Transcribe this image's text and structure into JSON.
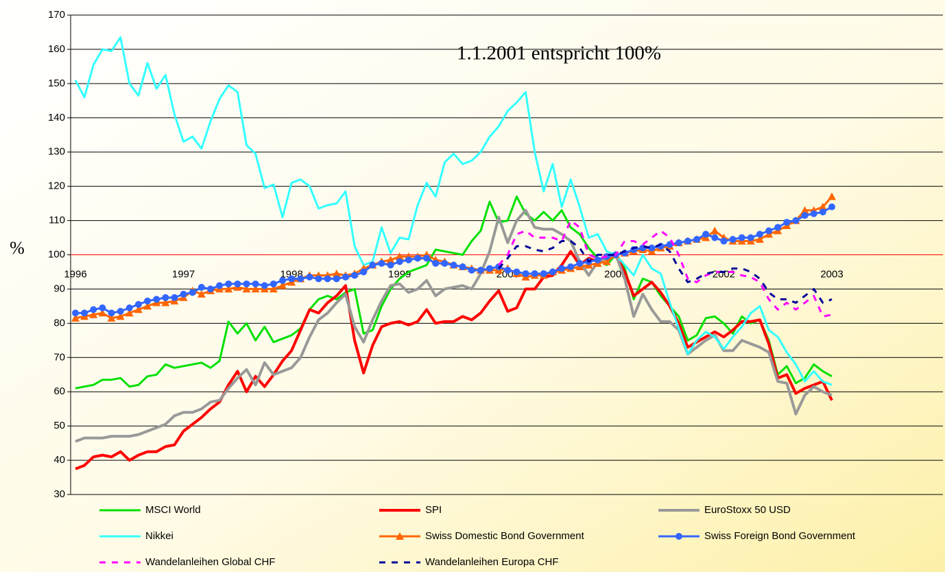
{
  "chart_data": {
    "type": "line",
    "annotation": "1.1.2001 entspricht 100%",
    "ylabel": "%",
    "ylim": [
      30,
      170
    ],
    "yticks": [
      30,
      40,
      50,
      60,
      70,
      80,
      90,
      100,
      110,
      120,
      130,
      140,
      150,
      160,
      170
    ],
    "reference_line": 100,
    "reference_color": "#ff0000",
    "grid": true,
    "legend": "bottom",
    "categories": [
      "1996",
      null,
      null,
      null,
      null,
      null,
      null,
      null,
      null,
      null,
      null,
      null,
      "1997",
      null,
      null,
      null,
      null,
      null,
      null,
      null,
      null,
      null,
      null,
      null,
      "1998",
      null,
      null,
      null,
      null,
      null,
      null,
      null,
      null,
      null,
      null,
      null,
      "1999",
      null,
      null,
      null,
      null,
      null,
      null,
      null,
      null,
      null,
      null,
      null,
      "2000",
      null,
      null,
      null,
      null,
      null,
      null,
      null,
      null,
      null,
      null,
      null,
      "2001",
      null,
      null,
      null,
      null,
      null,
      null,
      null,
      null,
      null,
      null,
      null,
      "2002",
      null,
      null,
      null,
      null,
      null,
      null,
      null,
      null,
      null,
      null,
      null,
      "2003"
    ],
    "series": [
      {
        "name": "MSCI World",
        "color": "#00e000",
        "width": 3,
        "values": [
          61,
          61.5,
          62,
          63.5,
          63.5,
          64,
          61.5,
          62,
          64.5,
          65,
          68,
          67,
          67.5,
          68,
          68.5,
          67,
          69,
          80.5,
          77,
          80,
          75,
          79,
          74.5,
          75.5,
          76.5,
          78.5,
          84,
          87,
          88,
          87,
          89,
          90,
          77,
          78,
          85,
          90,
          93,
          95,
          96,
          97,
          101.5,
          101,
          100.5,
          100,
          104,
          107,
          115.5,
          109.5,
          110,
          117,
          112,
          110,
          112.5,
          110,
          113,
          108,
          106,
          102,
          99,
          97,
          100,
          96,
          87,
          93,
          92,
          88,
          85,
          82,
          75,
          76.5,
          81.5,
          82,
          80,
          77,
          82,
          80,
          81,
          75,
          65,
          67.5,
          62.5,
          64,
          68,
          66,
          64.5
        ]
      },
      {
        "name": "SPI",
        "color": "#ff0000",
        "width": 4,
        "values": [
          37.5,
          38.5,
          41,
          41.5,
          41,
          42.5,
          40,
          41.5,
          42.5,
          42.5,
          44,
          44.5,
          48.5,
          50.5,
          52.5,
          55,
          57,
          62,
          66,
          60,
          64.5,
          61.5,
          65,
          69,
          72,
          78,
          84,
          83,
          86,
          88,
          91,
          75,
          65.5,
          73.5,
          79,
          80,
          80.5,
          79.5,
          80.5,
          84,
          80,
          80.5,
          80.5,
          82,
          81,
          83,
          86.5,
          89.5,
          83.5,
          84.5,
          90,
          90,
          93.5,
          94,
          97,
          101,
          97,
          99,
          98,
          99,
          100,
          95,
          88,
          90,
          92,
          89,
          85,
          80,
          73,
          74.5,
          76,
          77.5,
          76,
          78,
          80.5,
          80.5,
          81,
          74,
          64,
          65,
          59.5,
          61,
          62,
          63,
          57.5
        ]
      },
      {
        "name": "EuroStoxx 50 USD",
        "color": "#999999",
        "width": 4,
        "values": [
          45.5,
          46.5,
          46.5,
          46.5,
          47,
          47,
          47,
          47.5,
          48.5,
          49.5,
          50.5,
          53,
          54,
          54,
          55,
          57,
          57.5,
          61,
          64,
          66.5,
          62,
          68.5,
          65,
          66,
          67,
          70,
          76,
          81,
          83,
          86,
          88.5,
          79,
          74.5,
          81,
          86.5,
          91,
          91.5,
          89,
          90,
          92.5,
          88,
          90,
          90.5,
          91,
          90,
          94.5,
          101,
          111,
          103.5,
          110,
          113,
          108,
          107.5,
          107.5,
          106,
          104,
          98,
          94,
          98,
          99,
          100,
          93,
          82,
          88.5,
          84,
          80.5,
          80.5,
          78,
          71,
          73,
          75,
          76.5,
          72,
          72,
          75,
          74,
          73,
          71.5,
          63,
          62.5,
          53.5,
          59,
          61.5,
          60,
          59
        ]
      },
      {
        "name": "Nikkei",
        "color": "#33ffff",
        "width": 3,
        "values": [
          151,
          146,
          155.5,
          160,
          159.5,
          163.5,
          150,
          146.5,
          156,
          148.5,
          152.5,
          141,
          133,
          134.5,
          131,
          139,
          145.5,
          149.5,
          147.5,
          132,
          129.5,
          119.5,
          120.5,
          111,
          121,
          122,
          120,
          113.5,
          114.5,
          115,
          118.5,
          102.5,
          97,
          98,
          108,
          100.5,
          105,
          104.5,
          114.5,
          121,
          117,
          127,
          129.5,
          126.5,
          127.5,
          130,
          134.5,
          137.5,
          142,
          144.5,
          147.5,
          130,
          118.5,
          126.5,
          114,
          122,
          114,
          105,
          106,
          101,
          100,
          97,
          94,
          100,
          96,
          94.5,
          86,
          78.5,
          71,
          75,
          77.5,
          76,
          72.5,
          76,
          79,
          83,
          85,
          78,
          76,
          71.5,
          68,
          63,
          66,
          63,
          62
        ]
      },
      {
        "name": "Swiss Domestic Bond Government",
        "color": "#ff6600",
        "width": 3,
        "marker": "triangle",
        "values": [
          81.5,
          82,
          82.5,
          83,
          81.5,
          82,
          83,
          84,
          85,
          86,
          86,
          86.5,
          87.5,
          89.5,
          88.5,
          89.5,
          90,
          90,
          90.5,
          90,
          90,
          90,
          90,
          91,
          92,
          93,
          94,
          94,
          94,
          94.5,
          94,
          94.5,
          96,
          97,
          98,
          98.5,
          99.5,
          99.5,
          99.5,
          100,
          98.5,
          98,
          97,
          96.5,
          96,
          95.5,
          95.5,
          95.5,
          96,
          94.5,
          93.5,
          94,
          94,
          95,
          95.5,
          96,
          96.5,
          97,
          97.5,
          98,
          100,
          100.5,
          101,
          101.5,
          101,
          102,
          102.5,
          103.5,
          104,
          104.5,
          105,
          107,
          105,
          104,
          104,
          104,
          104.5,
          106,
          107,
          108.5,
          110,
          113,
          113,
          114,
          117
        ]
      },
      {
        "name": "Swiss Foreign Bond Government",
        "color": "#3366ff",
        "width": 3,
        "marker": "circle",
        "values": [
          83,
          83,
          84,
          84.5,
          83,
          83.5,
          84.5,
          85.5,
          86.5,
          87,
          87.5,
          87.5,
          88.5,
          89,
          90.5,
          90,
          91,
          91.5,
          91.5,
          91.5,
          91.5,
          91,
          91.5,
          92.5,
          93,
          93,
          93.5,
          93,
          93,
          93,
          93.5,
          94,
          95,
          97,
          97.5,
          97,
          98,
          98.5,
          99,
          99,
          97.5,
          97.5,
          97,
          96.5,
          95.5,
          95.5,
          96,
          96.5,
          95.5,
          95,
          94.5,
          94.5,
          94.5,
          95,
          96,
          96.5,
          97.5,
          98,
          98.5,
          99.5,
          100,
          100.5,
          101.5,
          102,
          102,
          102.5,
          103,
          103.5,
          104,
          104.5,
          106,
          105,
          104,
          104.5,
          105,
          105,
          106,
          107,
          108,
          109.5,
          110,
          111.5,
          112,
          112.5,
          114
        ]
      },
      {
        "name": "Wandelanleihen Global CHF",
        "color": "#ff00ff",
        "width": 3,
        "dash": true,
        "values": [
          null,
          null,
          null,
          null,
          null,
          null,
          null,
          null,
          null,
          null,
          null,
          null,
          null,
          null,
          null,
          null,
          null,
          null,
          null,
          null,
          null,
          null,
          null,
          null,
          null,
          null,
          null,
          null,
          null,
          null,
          null,
          null,
          null,
          null,
          null,
          null,
          null,
          null,
          null,
          null,
          null,
          null,
          null,
          null,
          null,
          null,
          null,
          97,
          100,
          106,
          107,
          105,
          105,
          105,
          104,
          110,
          108,
          100,
          99,
          99.5,
          100,
          104,
          104,
          103,
          105,
          107,
          105,
          100,
          93,
          92,
          94,
          95,
          95,
          95,
          94,
          93.5,
          92,
          87,
          84,
          86,
          84,
          86,
          88,
          82,
          82.5
        ]
      },
      {
        "name": "Wandelanleihen Europa CHF",
        "color": "#000099",
        "width": 3,
        "dash": true,
        "values": [
          null,
          null,
          null,
          null,
          null,
          null,
          null,
          null,
          null,
          null,
          null,
          null,
          null,
          null,
          null,
          null,
          null,
          null,
          null,
          null,
          null,
          null,
          null,
          null,
          null,
          null,
          null,
          null,
          null,
          null,
          null,
          null,
          null,
          null,
          null,
          null,
          null,
          null,
          null,
          null,
          null,
          null,
          null,
          null,
          null,
          null,
          null,
          96,
          99,
          102.5,
          102.5,
          101.5,
          101,
          102,
          104,
          104,
          102,
          98,
          100,
          100,
          100,
          101,
          102,
          102.5,
          102,
          103,
          101,
          96,
          92,
          93,
          94.5,
          95,
          95,
          96,
          96,
          95,
          93,
          89,
          87,
          87,
          86,
          88,
          90,
          86,
          87
        ]
      }
    ]
  }
}
